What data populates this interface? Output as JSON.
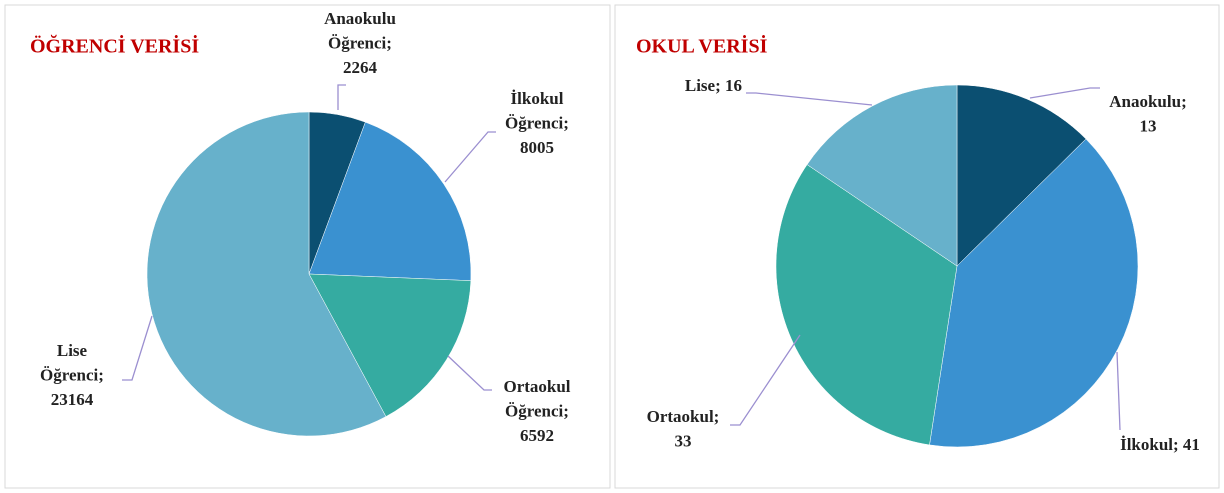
{
  "chart_data": [
    {
      "type": "pie",
      "title": "ÖĞRENCİ VERİSİ",
      "values": [
        2264,
        8005,
        6592,
        23164
      ],
      "value_labels": [
        [
          "Anaokulu",
          "Öğrenci;",
          "2264"
        ],
        [
          "İlkokul",
          "Öğrenci;",
          "8005"
        ],
        [
          "Ortaokul",
          "Öğrenci;",
          "6592"
        ],
        [
          "Lise",
          "Öğrenci;",
          "23164"
        ]
      ],
      "colors": [
        "#0b4f71",
        "#3a91d0",
        "#35aba1",
        "#67b1cb"
      ]
    },
    {
      "type": "pie",
      "title": "OKUL VERİSİ",
      "values": [
        13,
        41,
        33,
        16
      ],
      "value_labels": [
        [
          "Anaokulu;",
          "13"
        ],
        [
          "İlkokul; 41"
        ],
        [
          "Ortaokul;",
          "33"
        ],
        [
          "Lise; 16"
        ]
      ],
      "colors": [
        "#0b4f71",
        "#3a91d0",
        "#35aba1",
        "#67b1cb"
      ]
    }
  ]
}
